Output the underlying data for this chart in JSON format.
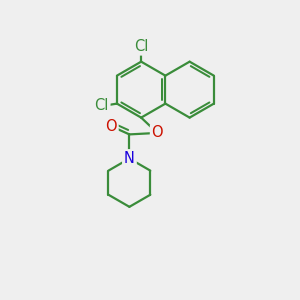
{
  "bg_color": "#efefef",
  "bond_color": "#3a8c3a",
  "bond_width": 1.6,
  "atom_colors": {
    "Cl": "#3a8c3a",
    "O": "#cc1100",
    "N": "#1a00dd"
  },
  "font_size": 10.5,
  "r_naph": 0.95,
  "lcx": 4.7,
  "lcy": 7.05,
  "pip_r": 0.82
}
